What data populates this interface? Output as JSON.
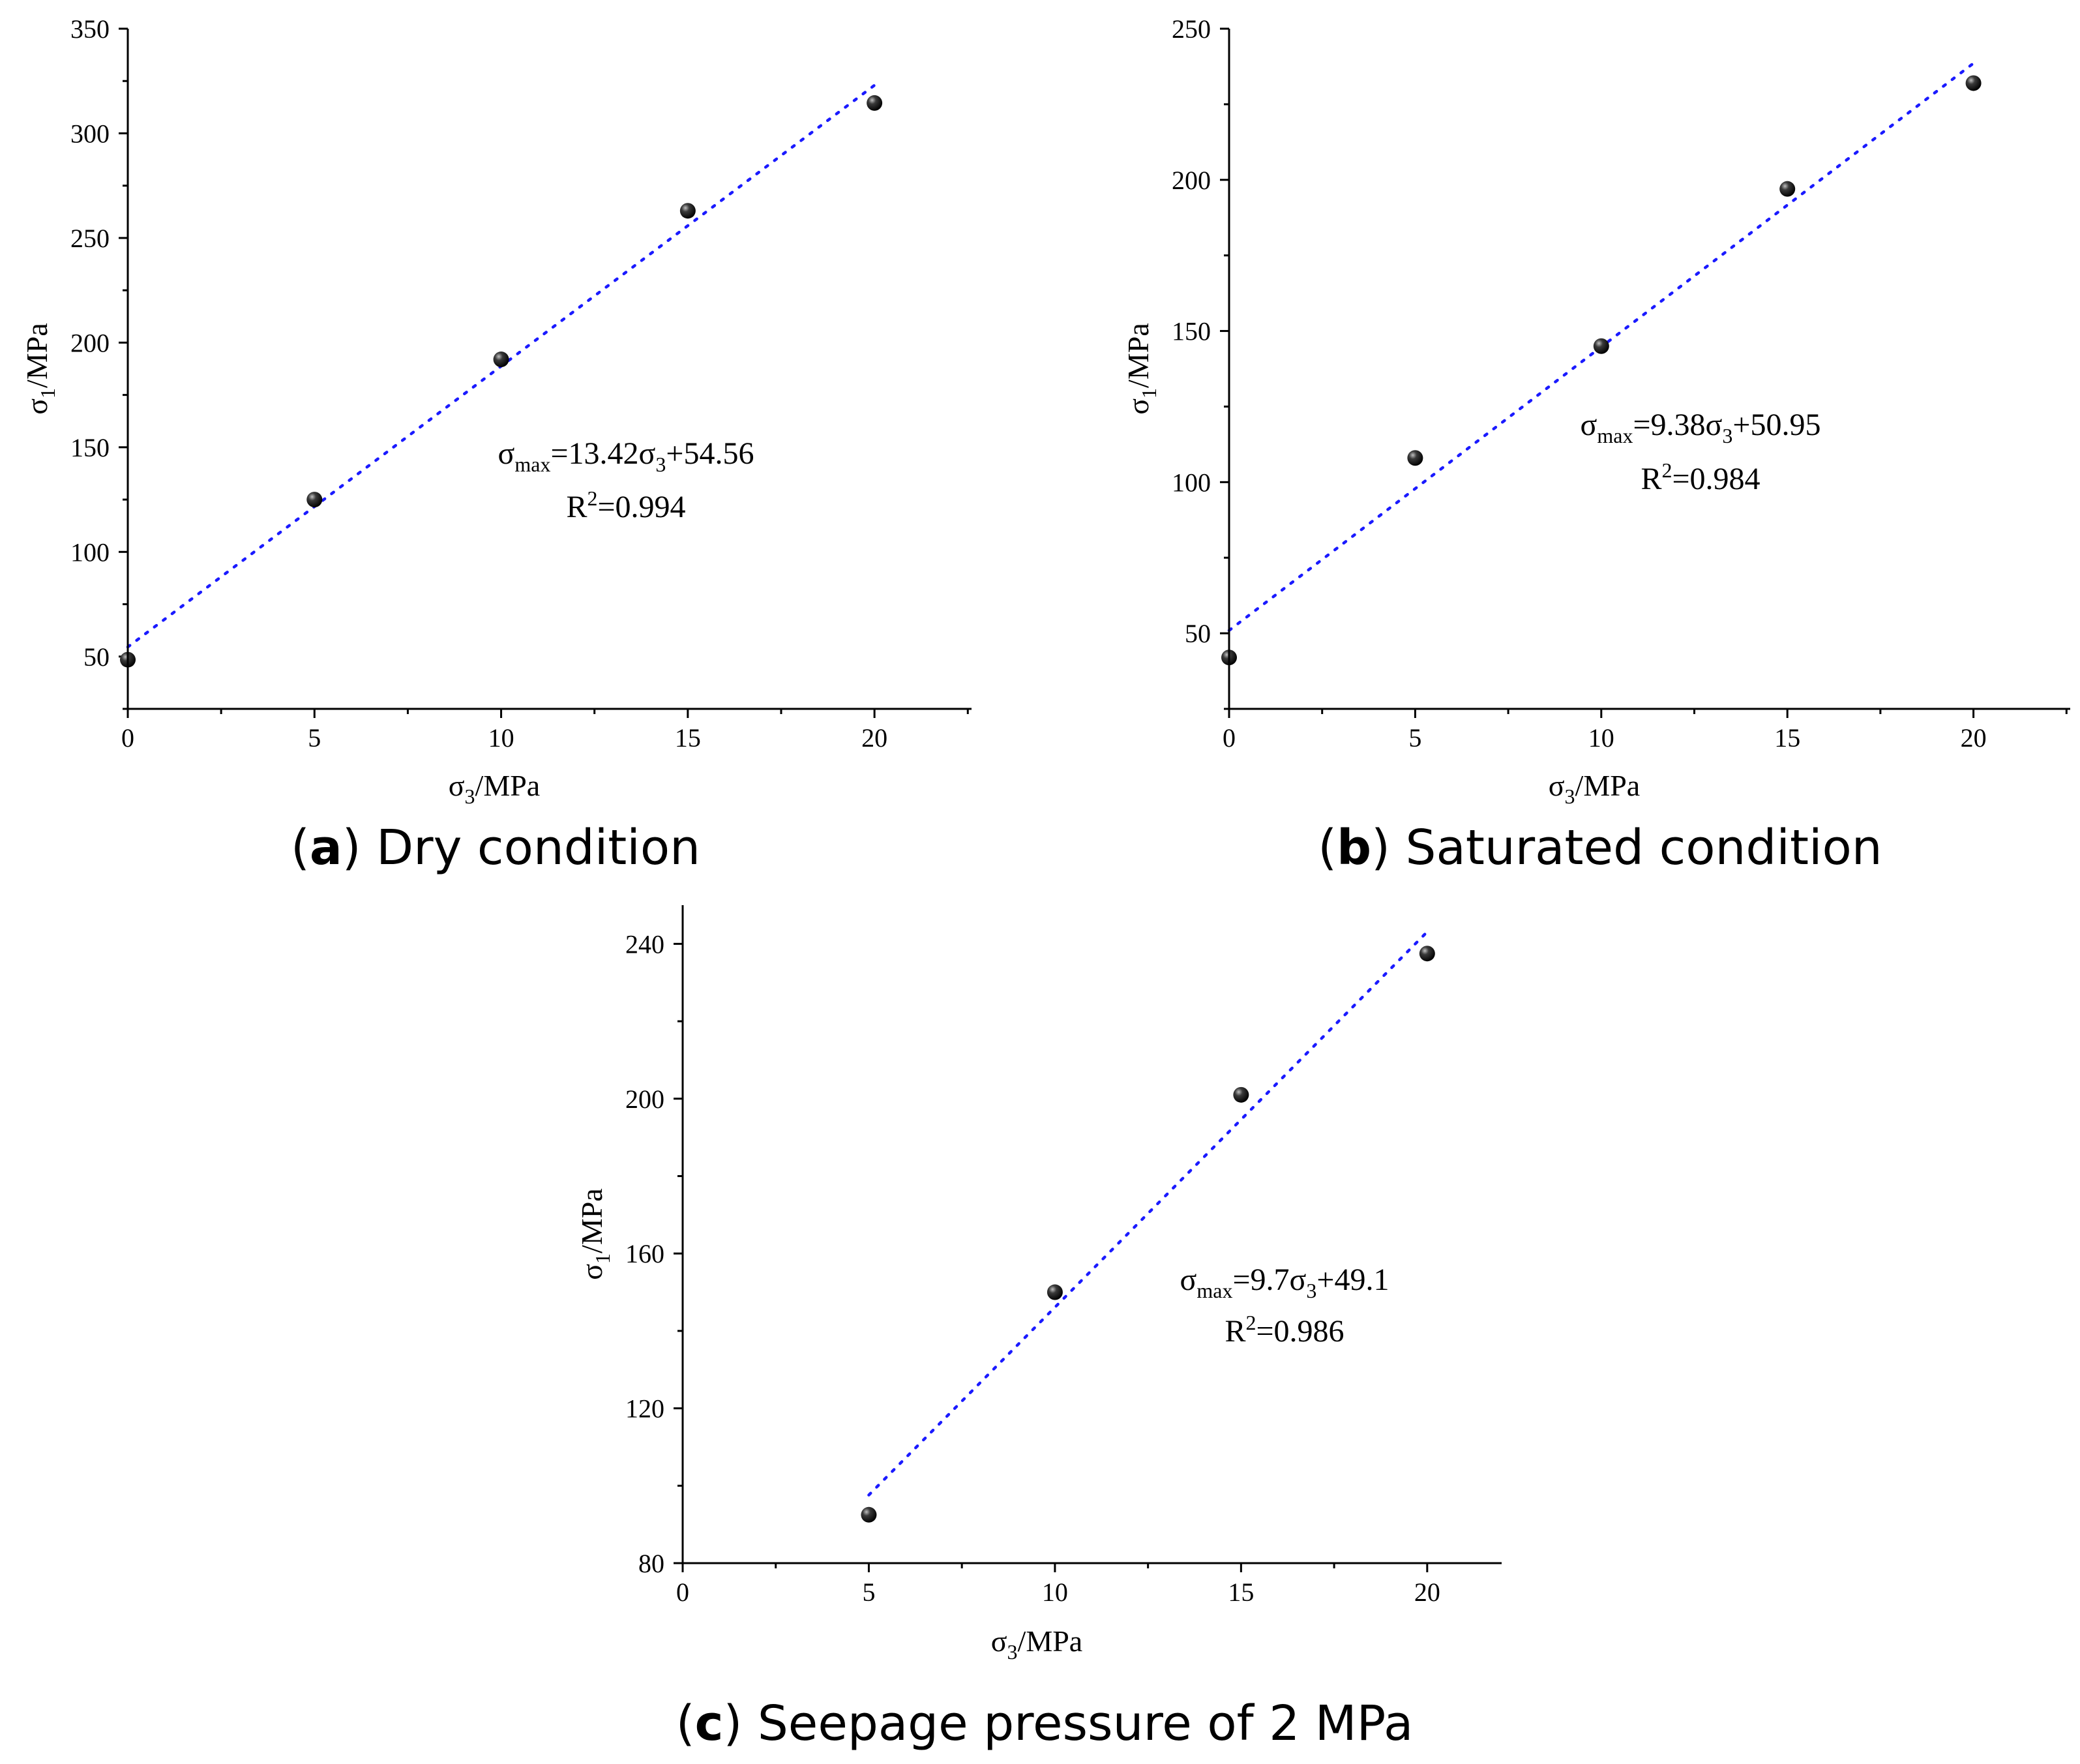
{
  "chart_data": [
    {
      "id": "a",
      "type": "scatter",
      "title": "",
      "xlabel_base": "σ",
      "xlabel_sub": "3",
      "xlabel_unit": "/MPa",
      "ylabel_base": "σ",
      "ylabel_sub": "1",
      "ylabel_unit": "/MPa",
      "xlim": [
        0,
        22.6
      ],
      "ylim": [
        25,
        350
      ],
      "xticks": [
        0,
        5,
        10,
        15,
        20
      ],
      "yticks": [
        50,
        100,
        150,
        200,
        250,
        300,
        350
      ],
      "x": [
        0,
        5,
        10,
        15,
        20
      ],
      "y": [
        48.5,
        125,
        192,
        263,
        314.5
      ],
      "fit": {
        "slope": 13.42,
        "intercept": 54.56,
        "x_range": [
          0,
          20
        ]
      },
      "equation": {
        "lhs": "σ",
        "sub": "max",
        "mid": "=13.42σ",
        "sub2": "3",
        "rhs": "+54.56"
      },
      "r2": {
        "base": "R",
        "sup": "2",
        "value": "=0.994"
      },
      "caption": {
        "letter": "a",
        "text": " Dry condition"
      }
    },
    {
      "id": "b",
      "type": "scatter",
      "title": "",
      "xlabel_base": "σ",
      "xlabel_sub": "3",
      "xlabel_unit": "/MPa",
      "ylabel_base": "σ",
      "ylabel_sub": "1",
      "ylabel_unit": "/MPa",
      "xlim": [
        0,
        22.6
      ],
      "ylim": [
        25,
        250
      ],
      "xticks": [
        0,
        5,
        10,
        15,
        20
      ],
      "yticks": [
        50,
        100,
        150,
        200,
        250
      ],
      "x": [
        0,
        5,
        10,
        15,
        20
      ],
      "y": [
        42,
        108,
        145,
        197,
        232
      ],
      "fit": {
        "slope": 9.38,
        "intercept": 50.95,
        "x_range": [
          0,
          20
        ]
      },
      "equation": {
        "lhs": "σ",
        "sub": "max",
        "mid": "=9.38σ",
        "sub2": "3",
        "rhs": "+50.95"
      },
      "r2": {
        "base": "R",
        "sup": "2",
        "value": "=0.984"
      },
      "caption": {
        "letter": "b",
        "text": " Saturated condition"
      }
    },
    {
      "id": "c",
      "type": "scatter",
      "title": "",
      "xlabel_base": "σ",
      "xlabel_sub": "3",
      "xlabel_unit": "/MPa",
      "ylabel_base": "σ",
      "ylabel_sub": "1",
      "ylabel_unit": "/MPa",
      "xlim": [
        0,
        22
      ],
      "ylim": [
        80,
        250
      ],
      "xticks": [
        0,
        5,
        10,
        15,
        20
      ],
      "yticks": [
        80,
        120,
        160,
        200,
        240
      ],
      "x": [
        5,
        10,
        15,
        20
      ],
      "y": [
        92.5,
        150,
        201,
        237.5
      ],
      "fit": {
        "slope": 9.7,
        "intercept": 49.1,
        "x_range": [
          5,
          20
        ]
      },
      "equation": {
        "lhs": "σ",
        "sub": "max",
        "mid": "=9.7σ",
        "sub2": "3",
        "rhs": "+49.1"
      },
      "r2": {
        "base": "R",
        "sup": "2",
        "value": "=0.986"
      },
      "caption": {
        "letter": "c",
        "text": " Seepage pressure of 2 MPa"
      }
    }
  ]
}
